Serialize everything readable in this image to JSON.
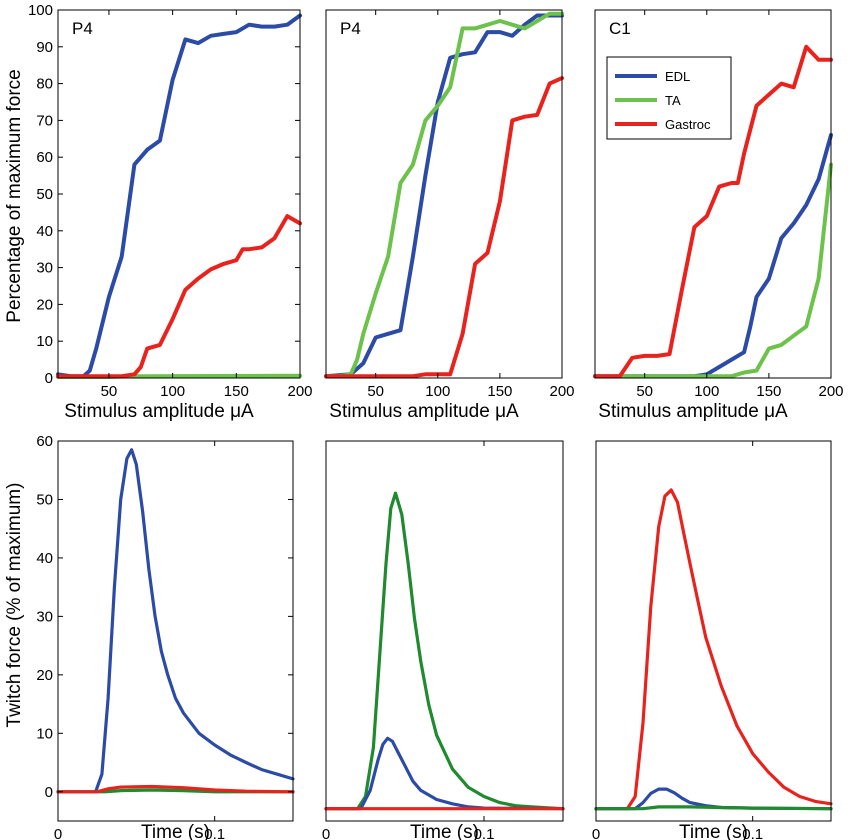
{
  "colors": {
    "EDL": "#2b4ba6",
    "TA": "#6cc24a",
    "Gastroc": "#e8231d",
    "TA_twitch": "#1f8a2e"
  },
  "labels": {
    "ylabel_top": "Percentage of maximum force",
    "ylabel_bottom": "Twitch force (% of maximum)",
    "xlabel_top": "Stimulus amplitude μA",
    "xlabel_bottom": "Time (s)"
  },
  "legend": [
    "EDL",
    "TA",
    "Gastroc"
  ],
  "chart_data": [
    {
      "type": "line",
      "panel": "A",
      "title": "P4",
      "xlabel": "Stimulus amplitude μA",
      "ylabel": "Percentage of maximum force",
      "xlim": [
        10,
        200
      ],
      "ylim": [
        0,
        100
      ],
      "xticks": [
        50,
        100,
        150,
        200
      ],
      "yticks": [
        0,
        10,
        20,
        30,
        40,
        50,
        60,
        70,
        80,
        90,
        100
      ],
      "series": [
        {
          "name": "EDL",
          "x": [
            10,
            20,
            30,
            35,
            40,
            50,
            60,
            70,
            80,
            90,
            100,
            110,
            120,
            130,
            140,
            150,
            160,
            170,
            180,
            190,
            200
          ],
          "y": [
            1,
            0.5,
            0.5,
            2,
            8,
            22,
            33,
            58,
            62,
            64.5,
            81,
            92,
            91,
            93,
            93.5,
            94,
            96,
            95.5,
            95.5,
            96,
            98.5
          ]
        },
        {
          "name": "TA",
          "x": [
            10,
            50,
            70,
            80,
            200
          ],
          "y": [
            0.3,
            0.3,
            0.5,
            0.5,
            0.6
          ]
        },
        {
          "name": "Gastroc",
          "x": [
            10,
            40,
            60,
            70,
            75,
            80,
            90,
            100,
            110,
            120,
            130,
            140,
            150,
            155,
            160,
            170,
            180,
            190,
            200
          ],
          "y": [
            0.5,
            0.5,
            0.5,
            1,
            3,
            8,
            9,
            16,
            24,
            27,
            29.5,
            31,
            32,
            35,
            35,
            35.5,
            38,
            44,
            42
          ]
        }
      ]
    },
    {
      "type": "line",
      "panel": "B",
      "title": "P4",
      "xlabel": "Stimulus amplitude μA",
      "ylabel": "",
      "xlim": [
        10,
        200
      ],
      "ylim": [
        0,
        100
      ],
      "xticks": [
        50,
        100,
        150,
        200
      ],
      "yticks": [],
      "series": [
        {
          "name": "EDL",
          "x": [
            10,
            30,
            40,
            50,
            60,
            70,
            80,
            90,
            100,
            110,
            120,
            130,
            140,
            150,
            160,
            170,
            180,
            190,
            200
          ],
          "y": [
            0.5,
            1,
            4,
            11,
            12,
            13,
            33,
            55,
            75,
            87,
            88,
            88.5,
            94,
            94,
            93,
            96,
            98.5,
            98.5,
            98.5
          ]
        },
        {
          "name": "TA",
          "x": [
            10,
            20,
            30,
            35,
            40,
            50,
            60,
            70,
            80,
            90,
            100,
            110,
            120,
            130,
            140,
            150,
            160,
            170,
            180,
            190,
            200
          ],
          "y": [
            0.5,
            0.5,
            1,
            5,
            12,
            23,
            33,
            53,
            58,
            70,
            74,
            79,
            95,
            95,
            96,
            97,
            96,
            95,
            97,
            99,
            99
          ]
        },
        {
          "name": "Gastroc",
          "x": [
            10,
            60,
            80,
            90,
            100,
            110,
            120,
            130,
            140,
            150,
            160,
            170,
            180,
            190,
            200
          ],
          "y": [
            0.5,
            0.5,
            0.5,
            1,
            1,
            1,
            12,
            31,
            34,
            48,
            70,
            71,
            71.5,
            80,
            81.5
          ]
        }
      ]
    },
    {
      "type": "line",
      "panel": "C",
      "title": "C1",
      "xlabel": "Stimulus amplitude μA",
      "ylabel": "",
      "xlim": [
        10,
        200
      ],
      "ylim": [
        0,
        100
      ],
      "xticks": [
        50,
        100,
        150,
        200
      ],
      "yticks": [],
      "series": [
        {
          "name": "EDL",
          "x": [
            10,
            70,
            80,
            90,
            100,
            110,
            120,
            130,
            135,
            140,
            150,
            160,
            170,
            180,
            190,
            200
          ],
          "y": [
            0.5,
            0.5,
            0.5,
            0.5,
            1,
            3,
            5,
            7,
            14,
            22,
            27,
            38,
            42,
            47,
            54,
            66
          ]
        },
        {
          "name": "TA",
          "x": [
            10,
            100,
            120,
            130,
            140,
            150,
            160,
            170,
            180,
            190,
            200
          ],
          "y": [
            0.5,
            0.5,
            0.5,
            1.5,
            2,
            8,
            9,
            11.5,
            14,
            27,
            58
          ]
        },
        {
          "name": "Gastroc",
          "x": [
            10,
            25,
            30,
            40,
            50,
            60,
            70,
            80,
            90,
            100,
            110,
            120,
            125,
            130,
            140,
            150,
            160,
            170,
            180,
            190,
            200
          ],
          "y": [
            0.5,
            0.5,
            0.5,
            5.5,
            6,
            6,
            6.5,
            24,
            41,
            44,
            52,
            53,
            53,
            61,
            74,
            77,
            80,
            79,
            90,
            86.5,
            86.5
          ]
        }
      ]
    },
    {
      "type": "line",
      "panel": "D",
      "title": "",
      "xlabel": "Time (s)",
      "ylabel": "Twitch force (% of maximum)",
      "xlim": [
        0,
        0.15
      ],
      "ylim": [
        -5,
        60
      ],
      "xticks": [
        0,
        0.1
      ],
      "xticklabels": [
        "0",
        "0.1"
      ],
      "yticks": [
        0,
        10,
        20,
        30,
        40,
        50,
        60
      ],
      "series": [
        {
          "name": "EDL",
          "x": [
            0,
            0.024,
            0.028,
            0.032,
            0.036,
            0.04,
            0.044,
            0.047,
            0.05,
            0.054,
            0.058,
            0.062,
            0.066,
            0.07,
            0.075,
            0.08,
            0.09,
            0.1,
            0.11,
            0.12,
            0.13,
            0.14,
            0.15
          ],
          "y": [
            0,
            0,
            3,
            16,
            35,
            50,
            57,
            58.5,
            56,
            48,
            38,
            30,
            24,
            20,
            16,
            13.5,
            10,
            8,
            6.3,
            5,
            3.8,
            3,
            2.2
          ]
        },
        {
          "name": "TA",
          "x": [
            0,
            0.03,
            0.04,
            0.06,
            0.08,
            0.1,
            0.12,
            0.15
          ],
          "y": [
            0,
            0,
            0.2,
            0.3,
            0.2,
            0,
            0,
            0
          ]
        },
        {
          "name": "Gastroc",
          "x": [
            0,
            0.025,
            0.032,
            0.04,
            0.06,
            0.08,
            0.1,
            0.12,
            0.15
          ],
          "y": [
            0,
            0,
            0.5,
            0.8,
            0.9,
            0.7,
            0.3,
            0.1,
            0
          ]
        }
      ]
    },
    {
      "type": "line",
      "panel": "E",
      "title": "",
      "xlabel": "Time (s)",
      "ylabel": "",
      "xlim": [
        0,
        0.15
      ],
      "ylim": [
        -2,
        60
      ],
      "xticks": [
        0,
        0.1
      ],
      "xticklabels": [
        "0",
        "0.1"
      ],
      "yticks": [],
      "series": [
        {
          "name": "TA",
          "x": [
            0,
            0.02,
            0.025,
            0.03,
            0.034,
            0.038,
            0.041,
            0.044,
            0.048,
            0.052,
            0.056,
            0.06,
            0.065,
            0.07,
            0.08,
            0.09,
            0.1,
            0.11,
            0.12,
            0.13,
            0.15
          ],
          "y": [
            0,
            0,
            2,
            10,
            25,
            40,
            49,
            51.5,
            48,
            40,
            31,
            24,
            17,
            12,
            6.5,
            3.5,
            2,
            1,
            0.5,
            0.3,
            0
          ]
        },
        {
          "name": "EDL",
          "x": [
            0,
            0.022,
            0.028,
            0.033,
            0.036,
            0.039,
            0.042,
            0.046,
            0.05,
            0.055,
            0.06,
            0.07,
            0.08,
            0.09,
            0.1,
            0.15
          ],
          "y": [
            0,
            0,
            3,
            8,
            10.5,
            11.5,
            11,
            9,
            7,
            4.5,
            3,
            1.5,
            0.8,
            0.3,
            0.1,
            0
          ]
        },
        {
          "name": "Gastroc",
          "x": [
            0,
            0.15
          ],
          "y": [
            0,
            0
          ]
        }
      ]
    },
    {
      "type": "line",
      "panel": "F",
      "title": "",
      "xlabel": "Time (s)",
      "ylabel": "",
      "xlim": [
        0,
        0.15
      ],
      "ylim": [
        -2,
        60
      ],
      "xticks": [
        0,
        0.1
      ],
      "xticklabels": [
        "0",
        "0.1"
      ],
      "yticks": [],
      "series": [
        {
          "name": "Gastroc",
          "x": [
            0,
            0.02,
            0.025,
            0.03,
            0.035,
            0.04,
            0.044,
            0.048,
            0.052,
            0.056,
            0.06,
            0.065,
            0.07,
            0.08,
            0.09,
            0.1,
            0.11,
            0.12,
            0.13,
            0.14,
            0.15
          ],
          "y": [
            0,
            0,
            2,
            14,
            33,
            46,
            51,
            52,
            50,
            45,
            40,
            34,
            28,
            20,
            13.5,
            9,
            6,
            3.5,
            2,
            1.2,
            0.8
          ]
        },
        {
          "name": "EDL",
          "x": [
            0,
            0.025,
            0.03,
            0.035,
            0.04,
            0.045,
            0.05,
            0.055,
            0.06,
            0.07,
            0.08,
            0.1,
            0.15
          ],
          "y": [
            0,
            0,
            1,
            2.5,
            3.2,
            3.2,
            2.6,
            1.7,
            1,
            0.5,
            0.2,
            0.1,
            0
          ]
        },
        {
          "name": "TA",
          "x": [
            0,
            0.03,
            0.04,
            0.06,
            0.1,
            0.15
          ],
          "y": [
            0,
            0,
            0.3,
            0.3,
            0.1,
            0
          ]
        }
      ]
    }
  ]
}
